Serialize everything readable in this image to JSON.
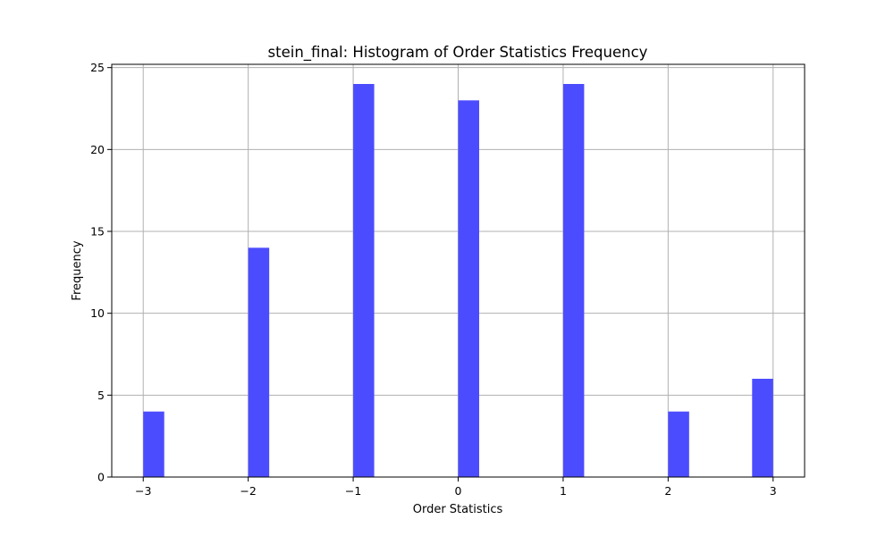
{
  "chart_data": {
    "type": "bar",
    "title": "stein_final: Histogram of Order Statistics Frequency",
    "xlabel": "Order Statistics",
    "ylabel": "Frequency",
    "bin_width": 0.2,
    "bins": [
      {
        "start": -3.0,
        "value": 4
      },
      {
        "start": -2.0,
        "value": 14
      },
      {
        "start": -1.0,
        "value": 24
      },
      {
        "start": 0.0,
        "value": 23
      },
      {
        "start": 1.0,
        "value": 24
      },
      {
        "start": 2.0,
        "value": 4
      },
      {
        "start": 2.8,
        "value": 6
      }
    ],
    "xlim": [
      -3.3,
      3.3
    ],
    "ylim": [
      0,
      25.2
    ],
    "xticks": [
      -3,
      -2,
      -1,
      0,
      1,
      2,
      3
    ],
    "xtick_labels": [
      "−3",
      "−2",
      "−1",
      "0",
      "1",
      "2",
      "3"
    ],
    "yticks": [
      0,
      5,
      10,
      15,
      20,
      25
    ],
    "ytick_labels": [
      "0",
      "5",
      "10",
      "15",
      "20",
      "25"
    ],
    "grid": true,
    "colors": {
      "bar": "#4c4cff",
      "grid": "#b0b0b0"
    }
  }
}
